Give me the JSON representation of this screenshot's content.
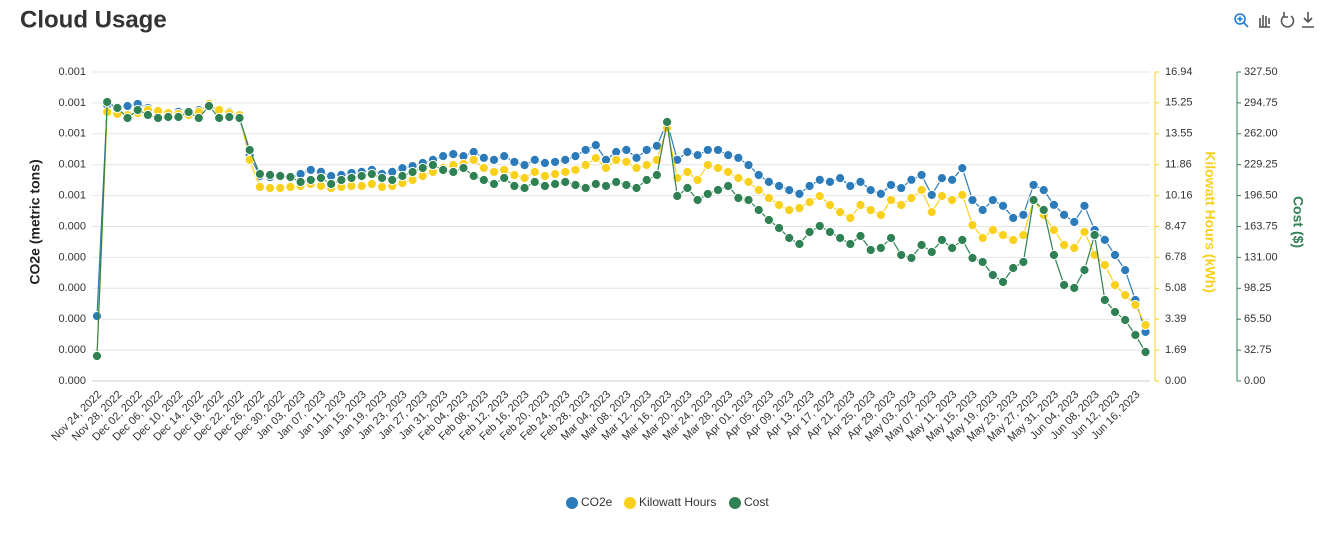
{
  "chart_data": {
    "type": "line",
    "title": "Cloud Usage",
    "ylabel": "CO2e (metric tons)",
    "y2label": "Kilowatt Hours (kWh)",
    "y3label": "Cost ($)",
    "legend": "bottom",
    "grid": true,
    "categories": [
      "Nov 24, 2022",
      null,
      "Nov 28, 2022",
      null,
      "Dec 02, 2022",
      null,
      "Dec 06, 2022",
      null,
      "Dec 10, 2022",
      null,
      "Dec 14, 2022",
      null,
      "Dec 18, 2022",
      null,
      "Dec 22, 2022",
      null,
      "Dec 26, 2022",
      null,
      "Dec 30, 2022",
      null,
      "Jan 03, 2023",
      null,
      "Jan 07, 2023",
      null,
      "Jan 11, 2023",
      null,
      "Jan 15, 2023",
      null,
      "Jan 19, 2023",
      null,
      "Jan 23, 2023",
      null,
      "Jan 27, 2023",
      null,
      "Jan 31, 2023",
      null,
      "Feb 04, 2023",
      null,
      "Feb 08, 2023",
      null,
      "Feb 12, 2023",
      null,
      "Feb 16, 2023",
      null,
      "Feb 20, 2023",
      null,
      "Feb 24, 2023",
      null,
      "Feb 28, 2023",
      null,
      "Mar 04, 2023",
      null,
      "Mar 08, 2023",
      null,
      "Mar 12, 2023",
      null,
      "Mar 16, 2023",
      null,
      "Mar 20, 2023",
      null,
      "Mar 24, 2023",
      null,
      "Mar 28, 2023",
      null,
      "Apr 01, 2023",
      null,
      "Apr 05, 2023",
      null,
      "Apr 09, 2023",
      null,
      "Apr 13, 2023",
      null,
      "Apr 17, 2023",
      null,
      "Apr 21, 2023",
      null,
      "Apr 25, 2023",
      null,
      "Apr 29, 2023",
      null,
      "May 03, 2023",
      null,
      "May 07, 2023",
      null,
      "May 11, 2023",
      null,
      "May 15, 2023",
      null,
      "May 19, 2023",
      null,
      "May 23, 2023",
      null,
      "May 27, 2023",
      null,
      "May 31, 2023",
      null,
      "Jun 04, 2023",
      null,
      "Jun 08, 2023",
      null,
      "Jun 12, 2023",
      null,
      "Jun 16, 2023",
      null
    ],
    "ylim": [
      0,
      0.0009
    ],
    "yticks": [
      {
        "value": 0,
        "label": "0.000"
      },
      {
        "value": 9e-05,
        "label": "0.000"
      },
      {
        "value": 0.00018,
        "label": "0.000"
      },
      {
        "value": 0.00027,
        "label": "0.000"
      },
      {
        "value": 0.00036,
        "label": "0.000"
      },
      {
        "value": 0.00045,
        "label": "0.000"
      },
      {
        "value": 0.00054,
        "label": "0.001"
      },
      {
        "value": 0.00063,
        "label": "0.001"
      },
      {
        "value": 0.00072,
        "label": "0.001"
      },
      {
        "value": 0.00081,
        "label": "0.001"
      },
      {
        "value": 0.0009,
        "label": "0.001"
      }
    ],
    "y2lim": [
      0,
      16.94
    ],
    "y2ticks": [
      {
        "value": 0,
        "label": "0.00"
      },
      1.69,
      3.39,
      5.08,
      6.78,
      8.47,
      10.16,
      11.86,
      13.55,
      15.25,
      16.94
    ],
    "y3lim": [
      0,
      327.5
    ],
    "y3ticks": [
      {
        "value": 0,
        "label": "0.00"
      },
      32.75,
      {
        "value": 65.5,
        "label": "65.50"
      },
      98.25,
      {
        "value": 131,
        "label": "131.00"
      },
      163.75,
      {
        "value": 196.5,
        "label": "196.50"
      },
      229.25,
      {
        "value": 262,
        "label": "262.00"
      },
      294.75,
      {
        "value": 327.5,
        "label": "327.50"
      }
    ],
    "series": [
      {
        "name": "CO2e",
        "color": "#2b7bba",
        "axis": "y",
        "values": [
          0.000189,
          0.000804,
          0.000798,
          0.000801,
          0.000807,
          0.000795,
          0.000784,
          0.000781,
          0.000784,
          0.000778,
          0.000789,
          0.000801,
          0.000789,
          0.000784,
          0.000766,
          0.000658,
          0.000597,
          0.000594,
          0.000597,
          0.000591,
          0.000603,
          0.000615,
          0.000609,
          0.000597,
          0.0006,
          0.000606,
          0.000609,
          0.000615,
          0.000603,
          0.000609,
          0.00062,
          0.000626,
          0.000635,
          0.000644,
          0.000655,
          0.000661,
          0.000655,
          0.000667,
          0.00065,
          0.000644,
          0.000655,
          0.000638,
          0.000629,
          0.000644,
          0.000635,
          0.000638,
          0.000644,
          0.000655,
          0.000673,
          0.000687,
          0.000644,
          0.000667,
          0.000673,
          0.00065,
          0.000673,
          0.000685,
          0.000754,
          0.000644,
          0.000667,
          0.000658,
          0.000673,
          0.000673,
          0.000658,
          0.00065,
          0.000629,
          0.0006,
          0.00058,
          0.000568,
          0.000556,
          0.000545,
          0.000568,
          0.000586,
          0.00058,
          0.000591,
          0.000568,
          0.00058,
          0.000556,
          0.000545,
          0.000571,
          0.000562,
          0.000586,
          0.0006,
          0.000542,
          0.000591,
          0.000586,
          0.00062,
          0.000527,
          0.000498,
          0.000527,
          0.00051,
          0.000475,
          0.000484,
          0.000571,
          0.000556,
          0.000513,
          0.000484,
          0.000463,
          0.00051,
          0.00044,
          0.000411,
          0.000367,
          0.000323,
          0.000236,
          0.000143
        ]
      },
      {
        "name": "Kilowatt Hours",
        "color": "#f9d01b",
        "axis": "y2",
        "values": [
          1.37,
          14.75,
          14.64,
          14.58,
          14.69,
          14.86,
          14.8,
          14.69,
          14.64,
          14.58,
          14.75,
          15.19,
          14.86,
          14.69,
          14.58,
          12.12,
          10.64,
          10.58,
          10.58,
          10.64,
          10.69,
          10.8,
          10.69,
          10.58,
          10.64,
          10.69,
          10.69,
          10.8,
          10.64,
          10.69,
          10.85,
          11.02,
          11.24,
          11.46,
          11.68,
          11.84,
          11.9,
          12.12,
          11.68,
          11.46,
          11.57,
          11.29,
          11.13,
          11.46,
          11.24,
          11.35,
          11.46,
          11.57,
          11.84,
          12.22,
          11.68,
          12.12,
          12.01,
          11.68,
          11.84,
          12.12,
          13.87,
          11.13,
          11.46,
          11.02,
          11.84,
          11.68,
          11.46,
          11.13,
          10.91,
          10.47,
          10.03,
          9.65,
          9.37,
          9.48,
          9.81,
          10.14,
          9.65,
          9.26,
          8.94,
          9.65,
          9.37,
          9.1,
          9.92,
          9.65,
          10.03,
          10.47,
          9.26,
          10.14,
          9.92,
          10.2,
          8.55,
          7.84,
          8.28,
          8.0,
          7.73,
          8.0,
          9.92,
          9.1,
          8.28,
          7.46,
          7.29,
          8.17,
          6.91,
          6.36,
          5.26,
          4.71,
          4.17,
          3.07
        ]
      },
      {
        "name": "Cost",
        "color": "#2f8153",
        "axis": "y3",
        "values": [
          26.5,
          295.71,
          289.35,
          278.75,
          287.23,
          281.93,
          278.75,
          279.81,
          279.81,
          285.11,
          278.75,
          291.47,
          278.75,
          279.81,
          278.75,
          244.84,
          219.4,
          218.34,
          217.28,
          216.22,
          210.92,
          213.04,
          215.16,
          208.8,
          213.04,
          215.16,
          217.28,
          219.4,
          215.16,
          213.04,
          217.28,
          221.52,
          225.76,
          228.94,
          223.64,
          221.52,
          225.76,
          217.28,
          213.04,
          208.8,
          215.16,
          206.68,
          204.56,
          210.92,
          206.68,
          208.8,
          210.92,
          207.74,
          204.56,
          208.8,
          206.68,
          210.92,
          207.74,
          204.56,
          213.04,
          218.34,
          274.51,
          196.08,
          204.56,
          191.84,
          198.2,
          202.44,
          206.68,
          193.96,
          191.84,
          181.24,
          170.64,
          162.16,
          151.57,
          145.21,
          157.93,
          164.28,
          157.93,
          151.57,
          145.21,
          153.69,
          138.85,
          140.97,
          151.57,
          133.55,
          130.37,
          144.15,
          136.73,
          149.45,
          140.97,
          149.45,
          130.37,
          126.13,
          112.35,
          104.93,
          119.77,
          126.13,
          191.84,
          181.24,
          133.55,
          101.75,
          98.57,
          117.65,
          154.75,
          85.85,
          73.13,
          64.65,
          48.76,
          30.74
        ]
      }
    ]
  }
}
